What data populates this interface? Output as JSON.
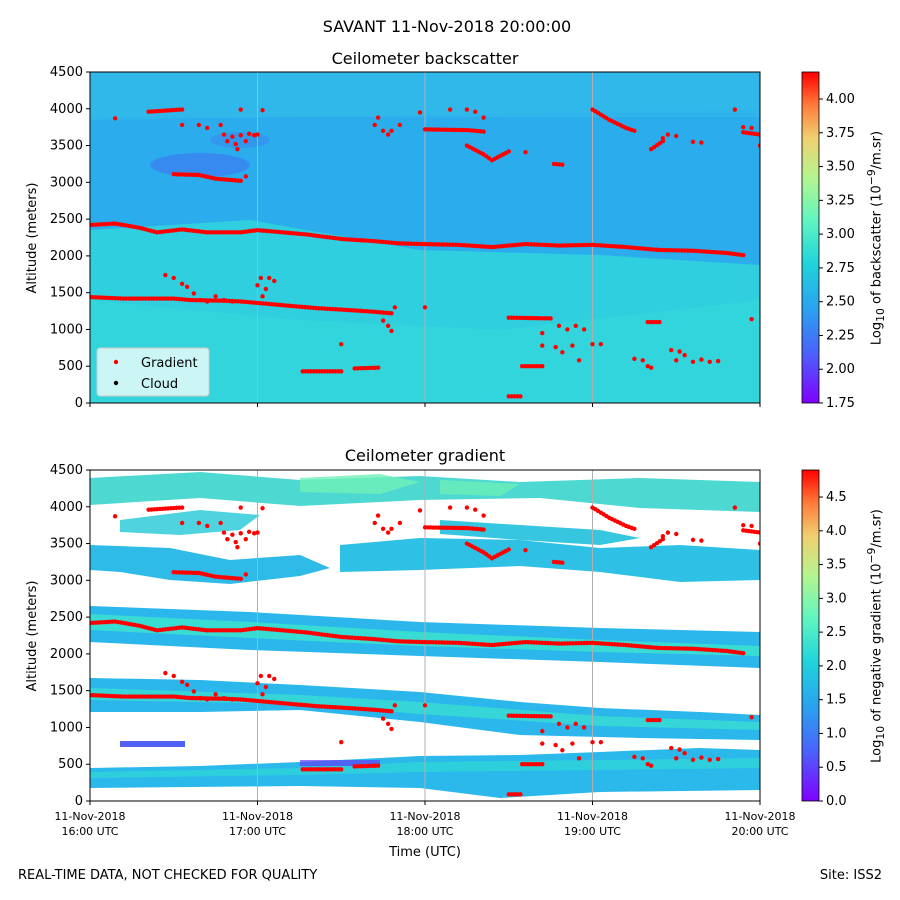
{
  "figure": {
    "suptitle": "SAVANT 11-Nov-2018 20:00:00",
    "footer_left": "REAL-TIME DATA, NOT CHECKED FOR QUALITY",
    "footer_right": "Site: ISS2"
  },
  "chart_data": [
    {
      "type": "heatmap",
      "title": "Ceilometer backscatter",
      "xlabel": "",
      "ylabel": "Altitude (meters)",
      "xlim": [
        16,
        20
      ],
      "ylim": [
        0,
        4500
      ],
      "xticks": [
        {
          "value": 16,
          "line1": "11-Nov-2018",
          "line2": "16:00 UTC"
        },
        {
          "value": 17,
          "line1": "11-Nov-2018",
          "line2": "17:00 UTC"
        },
        {
          "value": 18,
          "line1": "11-Nov-2018",
          "line2": "18:00 UTC"
        },
        {
          "value": 19,
          "line1": "11-Nov-2018",
          "line2": "19:00 UTC"
        },
        {
          "value": 20,
          "line1": "11-Nov-2018",
          "line2": "20:00 UTC"
        }
      ],
      "show_xtick_labels": false,
      "yticks": [
        "0",
        "500",
        "1000",
        "1500",
        "2000",
        "2500",
        "3000",
        "3500",
        "4000",
        "4500"
      ],
      "colorbar": {
        "label_html": "Log<sub>10</sub> of backscatter (10<sup>−9</sup>/m.sr)",
        "min": 1.75,
        "max": 4.2,
        "ticks": [
          "1.75",
          "2.00",
          "2.25",
          "2.50",
          "2.75",
          "3.00",
          "3.25",
          "3.50",
          "3.75",
          "4.00"
        ]
      },
      "legend": {
        "position": "lower-left",
        "entries": [
          {
            "label": "Gradient",
            "color": "#ff0000"
          },
          {
            "label": "Cloud",
            "color": "#000000"
          }
        ]
      },
      "grid": "vertical"
    },
    {
      "type": "heatmap",
      "title": "Ceilometer gradient",
      "xlabel": "Time (UTC)",
      "ylabel": "Altitude (meters)",
      "xlim": [
        16,
        20
      ],
      "ylim": [
        0,
        4500
      ],
      "xticks": [
        {
          "value": 16,
          "line1": "11-Nov-2018",
          "line2": "16:00 UTC"
        },
        {
          "value": 17,
          "line1": "11-Nov-2018",
          "line2": "17:00 UTC"
        },
        {
          "value": 18,
          "line1": "11-Nov-2018",
          "line2": "18:00 UTC"
        },
        {
          "value": 19,
          "line1": "11-Nov-2018",
          "line2": "19:00 UTC"
        },
        {
          "value": 20,
          "line1": "11-Nov-2018",
          "line2": "20:00 UTC"
        }
      ],
      "show_xtick_labels": true,
      "yticks": [
        "0",
        "500",
        "1000",
        "1500",
        "2000",
        "2500",
        "3000",
        "3500",
        "4000",
        "4500"
      ],
      "colorbar": {
        "label_html": "Log<sub>10</sub> of negative gradient (10<sup>−9</sup>/m.sr)",
        "min": 0.0,
        "max": 4.9,
        "ticks": [
          "0.0",
          "0.5",
          "1.0",
          "1.5",
          "2.0",
          "2.5",
          "3.0",
          "3.5",
          "4.0",
          "4.5"
        ]
      },
      "grid": "vertical"
    }
  ],
  "gradient_layers": [
    {
      "name": "upper-layer",
      "points": [
        [
          16.0,
          2420
        ],
        [
          16.15,
          2440
        ],
        [
          16.3,
          2380
        ],
        [
          16.4,
          2320
        ],
        [
          16.55,
          2360
        ],
        [
          16.7,
          2320
        ],
        [
          16.9,
          2320
        ],
        [
          17.0,
          2350
        ],
        [
          17.1,
          2330
        ],
        [
          17.3,
          2290
        ],
        [
          17.5,
          2230
        ],
        [
          17.7,
          2200
        ],
        [
          17.85,
          2170
        ],
        [
          18.0,
          2160
        ],
        [
          18.2,
          2150
        ],
        [
          18.4,
          2120
        ],
        [
          18.6,
          2160
        ],
        [
          18.8,
          2140
        ],
        [
          19.0,
          2150
        ],
        [
          19.2,
          2120
        ],
        [
          19.4,
          2080
        ],
        [
          19.6,
          2070
        ],
        [
          19.8,
          2040
        ],
        [
          19.9,
          2010
        ]
      ]
    },
    {
      "name": "lower-layer",
      "points": [
        [
          16.0,
          1440
        ],
        [
          16.2,
          1420
        ],
        [
          16.4,
          1420
        ],
        [
          16.5,
          1420
        ],
        [
          16.6,
          1400
        ],
        [
          16.8,
          1390
        ],
        [
          16.9,
          1380
        ],
        [
          17.0,
          1360
        ],
        [
          17.2,
          1320
        ],
        [
          17.35,
          1290
        ],
        [
          17.5,
          1270
        ],
        [
          17.7,
          1240
        ],
        [
          17.8,
          1220
        ]
      ]
    },
    {
      "name": "segment-1150",
      "points": [
        [
          18.5,
          1160
        ],
        [
          18.75,
          1150
        ]
      ]
    },
    {
      "name": "segment-3950",
      "points": [
        [
          16.35,
          3960
        ],
        [
          16.55,
          3990
        ]
      ]
    },
    {
      "name": "segment-3720",
      "points": [
        [
          18.0,
          3720
        ],
        [
          18.25,
          3710
        ],
        [
          18.35,
          3690
        ]
      ]
    },
    {
      "name": "segment-3100",
      "points": [
        [
          16.5,
          3110
        ],
        [
          16.65,
          3100
        ],
        [
          16.75,
          3050
        ],
        [
          16.9,
          3020
        ]
      ]
    },
    {
      "name": "segment-4000",
      "points": [
        [
          19.0,
          3990
        ],
        [
          19.1,
          3850
        ],
        [
          19.2,
          3740
        ],
        [
          19.25,
          3700
        ]
      ]
    },
    {
      "name": "segment-420",
      "points": [
        [
          17.27,
          430
        ],
        [
          17.5,
          430
        ]
      ]
    },
    {
      "name": "segment-480",
      "points": [
        [
          17.58,
          470
        ],
        [
          17.72,
          480
        ]
      ]
    },
    {
      "name": "segment-500",
      "points": [
        [
          18.58,
          500
        ],
        [
          18.7,
          500
        ]
      ]
    },
    {
      "name": "segment-90",
      "points": [
        [
          18.5,
          90
        ],
        [
          18.57,
          90
        ]
      ]
    },
    {
      "name": "segment-3650",
      "points": [
        [
          19.9,
          3680
        ],
        [
          20.0,
          3650
        ]
      ]
    },
    {
      "name": "segment-1100",
      "points": [
        [
          19.33,
          1100
        ],
        [
          19.4,
          1100
        ]
      ]
    },
    {
      "name": "segment-3480",
      "points": [
        [
          19.35,
          3450
        ],
        [
          19.42,
          3560
        ]
      ]
    },
    {
      "name": "segment-3380",
      "points": [
        [
          18.25,
          3500
        ],
        [
          18.35,
          3380
        ],
        [
          18.4,
          3300
        ],
        [
          18.5,
          3420
        ]
      ]
    },
    {
      "name": "segment-3230",
      "points": [
        [
          18.77,
          3250
        ],
        [
          18.82,
          3240
        ]
      ]
    }
  ],
  "gradient_scatter": [
    [
      16.15,
      3870
    ],
    [
      16.55,
      3780
    ],
    [
      16.65,
      3780
    ],
    [
      16.7,
      3740
    ],
    [
      16.78,
      3780
    ],
    [
      16.8,
      3650
    ],
    [
      16.82,
      3560
    ],
    [
      16.85,
      3620
    ],
    [
      16.87,
      3520
    ],
    [
      16.88,
      3450
    ],
    [
      16.9,
      3640
    ],
    [
      16.93,
      3560
    ],
    [
      16.95,
      3660
    ],
    [
      16.93,
      3080
    ],
    [
      16.98,
      3640
    ],
    [
      17.03,
      3980
    ],
    [
      16.9,
      3990
    ],
    [
      17.0,
      3650
    ],
    [
      17.0,
      1600
    ],
    [
      17.02,
      1700
    ],
    [
      17.05,
      1550
    ],
    [
      17.07,
      1700
    ],
    [
      17.1,
      1660
    ],
    [
      17.03,
      1450
    ],
    [
      16.45,
      1740
    ],
    [
      16.5,
      1700
    ],
    [
      16.55,
      1620
    ],
    [
      16.58,
      1580
    ],
    [
      16.62,
      1490
    ],
    [
      16.66,
      1400
    ],
    [
      16.7,
      1380
    ],
    [
      16.75,
      1450
    ],
    [
      16.8,
      1400
    ],
    [
      16.85,
      1380
    ],
    [
      17.75,
      1120
    ],
    [
      17.78,
      1050
    ],
    [
      17.8,
      980
    ],
    [
      17.82,
      1300
    ],
    [
      18.0,
      1300
    ],
    [
      17.5,
      800
    ],
    [
      17.7,
      3780
    ],
    [
      17.72,
      3880
    ],
    [
      17.75,
      3700
    ],
    [
      17.78,
      3650
    ],
    [
      17.8,
      3700
    ],
    [
      17.85,
      3780
    ],
    [
      17.97,
      3950
    ],
    [
      18.15,
      3990
    ],
    [
      18.25,
      3990
    ],
    [
      18.3,
      3960
    ],
    [
      18.35,
      3880
    ],
    [
      18.7,
      950
    ],
    [
      18.8,
      1050
    ],
    [
      18.85,
      1000
    ],
    [
      18.9,
      1050
    ],
    [
      18.95,
      1000
    ],
    [
      18.7,
      780
    ],
    [
      18.78,
      760
    ],
    [
      18.82,
      690
    ],
    [
      18.88,
      780
    ],
    [
      18.92,
      580
    ],
    [
      19.0,
      800
    ],
    [
      19.05,
      800
    ],
    [
      19.25,
      600
    ],
    [
      19.3,
      580
    ],
    [
      19.33,
      500
    ],
    [
      19.35,
      480
    ],
    [
      19.47,
      720
    ],
    [
      19.5,
      580
    ],
    [
      19.52,
      700
    ],
    [
      19.55,
      650
    ],
    [
      19.6,
      560
    ],
    [
      19.65,
      590
    ],
    [
      19.7,
      560
    ],
    [
      19.75,
      570
    ],
    [
      19.85,
      3990
    ],
    [
      19.9,
      3750
    ],
    [
      19.95,
      3740
    ],
    [
      19.95,
      1140
    ],
    [
      20.0,
      3500
    ],
    [
      19.42,
      3600
    ],
    [
      19.45,
      3650
    ],
    [
      19.5,
      3630
    ],
    [
      19.6,
      3550
    ],
    [
      19.65,
      3540
    ],
    [
      18.6,
      3410
    ]
  ]
}
